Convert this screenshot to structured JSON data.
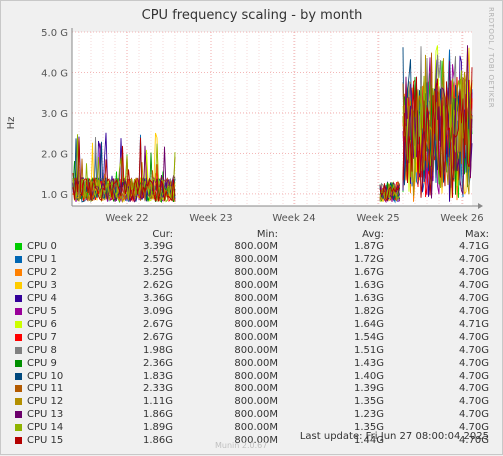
{
  "chart_data": {
    "type": "line",
    "title": "CPU frequency scaling - by month",
    "ylabel": "Hz",
    "xlabel": "",
    "y_ticks": [
      "5.0 G",
      "4.0 G",
      "3.0 G",
      "2.0 G",
      "1.0 G"
    ],
    "y_tick_values": [
      5.0,
      4.0,
      3.0,
      2.0,
      1.0
    ],
    "ylim": [
      0.7,
      5.0
    ],
    "x_ticks": [
      "Week 22",
      "Week 23",
      "Week 24",
      "Week 25",
      "Week 26"
    ],
    "grid": true,
    "active_ranges": [
      [
        "Week 21",
        "Week 22"
      ],
      [
        "Week 25",
        "Week 26"
      ]
    ],
    "series": [
      {
        "name": "CPU 0",
        "color": "#00cc00",
        "cur": "3.39G",
        "min": "800.00M",
        "avg": "1.87G",
        "max": "4.71G"
      },
      {
        "name": "CPU 1",
        "color": "#0066b3",
        "cur": "2.57G",
        "min": "800.00M",
        "avg": "1.72G",
        "max": "4.70G"
      },
      {
        "name": "CPU 2",
        "color": "#ff8000",
        "cur": "3.25G",
        "min": "800.00M",
        "avg": "1.67G",
        "max": "4.70G"
      },
      {
        "name": "CPU 3",
        "color": "#ffcc00",
        "cur": "2.62G",
        "min": "800.00M",
        "avg": "1.63G",
        "max": "4.70G"
      },
      {
        "name": "CPU 4",
        "color": "#330099",
        "cur": "3.36G",
        "min": "800.00M",
        "avg": "1.63G",
        "max": "4.70G"
      },
      {
        "name": "CPU 5",
        "color": "#990099",
        "cur": "3.09G",
        "min": "800.00M",
        "avg": "1.82G",
        "max": "4.70G"
      },
      {
        "name": "CPU 6",
        "color": "#ccff00",
        "cur": "2.67G",
        "min": "800.00M",
        "avg": "1.64G",
        "max": "4.71G"
      },
      {
        "name": "CPU 7",
        "color": "#ff0000",
        "cur": "2.67G",
        "min": "800.00M",
        "avg": "1.54G",
        "max": "4.70G"
      },
      {
        "name": "CPU 8",
        "color": "#808080",
        "cur": "1.98G",
        "min": "800.00M",
        "avg": "1.51G",
        "max": "4.70G"
      },
      {
        "name": "CPU 9",
        "color": "#008f00",
        "cur": "2.36G",
        "min": "800.00M",
        "avg": "1.43G",
        "max": "4.70G"
      },
      {
        "name": "CPU 10",
        "color": "#00487d",
        "cur": "1.83G",
        "min": "800.00M",
        "avg": "1.40G",
        "max": "4.70G"
      },
      {
        "name": "CPU 11",
        "color": "#b35a00",
        "cur": "2.33G",
        "min": "800.00M",
        "avg": "1.39G",
        "max": "4.70G"
      },
      {
        "name": "CPU 12",
        "color": "#b38f00",
        "cur": "1.11G",
        "min": "800.00M",
        "avg": "1.35G",
        "max": "4.70G"
      },
      {
        "name": "CPU 13",
        "color": "#6b006b",
        "cur": "1.86G",
        "min": "800.00M",
        "avg": "1.23G",
        "max": "4.70G"
      },
      {
        "name": "CPU 14",
        "color": "#8fb300",
        "cur": "1.89G",
        "min": "800.00M",
        "avg": "1.35G",
        "max": "4.70G"
      },
      {
        "name": "CPU 15",
        "color": "#b30000",
        "cur": "1.86G",
        "min": "800.00M",
        "avg": "1.44G",
        "max": "4.70G"
      }
    ]
  },
  "legend_headers": {
    "cur": "Cur:",
    "min": "Min:",
    "avg": "Avg:",
    "max": "Max:"
  },
  "footer": {
    "last_update": "Last update: Fri Jun 27 08:00:04 2025",
    "munin": "Munin 2.0.67",
    "rrdtool": "RRDTOOL / TOBI OETIKER"
  }
}
